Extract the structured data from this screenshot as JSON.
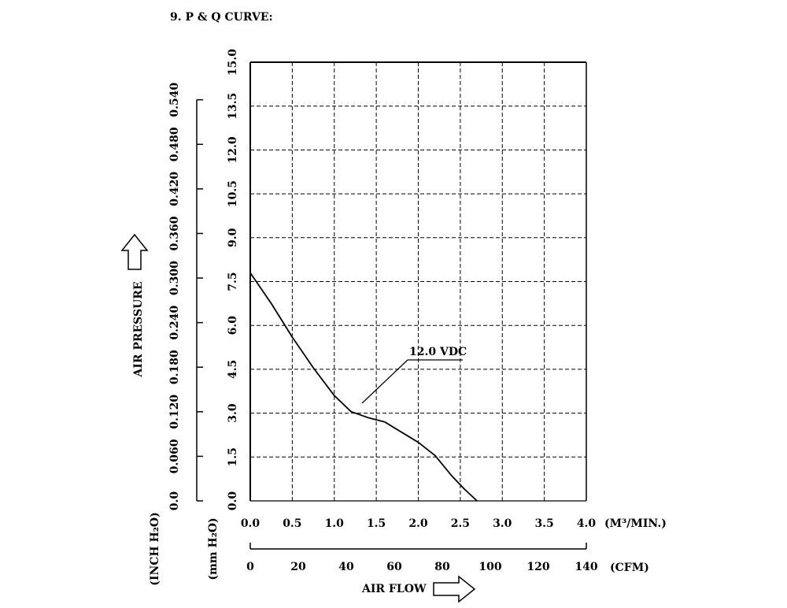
{
  "section_title": "9. P & Q CURVE:",
  "chart_data": {
    "type": "line",
    "title": "9. P & Q CURVE:",
    "xlabel": "AIR FLOW",
    "ylabel": "AIR PRESSURE",
    "x_unit_primary": "(M³/MIN.)",
    "x_unit_secondary": "(CFM)",
    "y_unit_primary": "(mm H₂O)",
    "y_unit_secondary": "(INCH H₂O)",
    "xlim": [
      0,
      4.0
    ],
    "ylim": [
      0,
      15.0
    ],
    "x_ticks": [
      "0.0",
      "0.5",
      "1.0",
      "1.5",
      "2.0",
      "2.5",
      "3.0",
      "3.5",
      "4.0"
    ],
    "cfm_ticks": [
      "0",
      "20",
      "40",
      "60",
      "80",
      "100",
      "120",
      "140"
    ],
    "y_ticks": [
      "0.0",
      "1.5",
      "3.0",
      "4.5",
      "6.0",
      "7.5",
      "9.0",
      "10.5",
      "12.0",
      "13.5",
      "15.0"
    ],
    "inch_ticks": [
      "0.0",
      "0.060",
      "0.120",
      "0.180",
      "0.240",
      "0.300",
      "0.360",
      "0.420",
      "0.480",
      "0.540"
    ],
    "grid": true,
    "series": [
      {
        "name": "12.0 VDC",
        "x": [
          0.0,
          0.25,
          0.5,
          0.75,
          1.0,
          1.2,
          1.4,
          1.6,
          1.8,
          2.0,
          2.2,
          2.4,
          2.55,
          2.7
        ],
        "y": [
          7.8,
          6.75,
          5.6,
          4.55,
          3.6,
          3.05,
          2.85,
          2.7,
          2.35,
          2.0,
          1.55,
          0.85,
          0.4,
          0.0
        ]
      }
    ],
    "annotations": [
      {
        "text": "12.0 VDC",
        "points_to": {
          "x": 1.2,
          "y": 3.3
        }
      }
    ]
  }
}
